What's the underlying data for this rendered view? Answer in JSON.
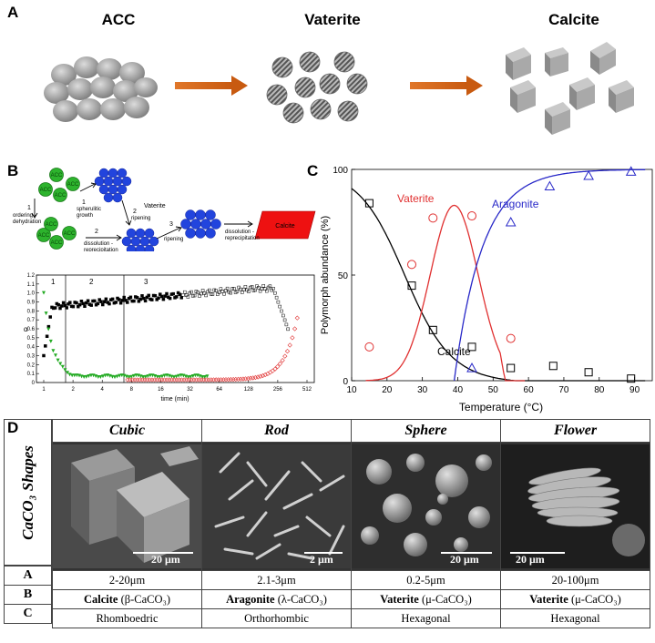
{
  "panel_a": {
    "label": "A",
    "stages": [
      "ACC",
      "Vaterite",
      "Calcite"
    ]
  },
  "panel_b": {
    "label": "B",
    "schematic": {
      "acc": "ACC",
      "vaterite": "Vaterite",
      "calcite": "Calcite",
      "step1a_num": "1",
      "step1a_text": [
        "ordering -",
        "dehydration"
      ],
      "step1b_num": "1",
      "step1b_text": [
        "spherulitic",
        "growth"
      ],
      "step2a_num": "2",
      "step2a_text": [
        "ripening"
      ],
      "step2b_num": "2",
      "step2b_text": [
        "dissolution -",
        "reprecipitation"
      ],
      "step3_num": "3",
      "step3a_text": [
        "ripening"
      ],
      "step3b_text": [
        "dissolution -",
        "reprecipitation"
      ]
    },
    "plot": {
      "ylabel": "α",
      "xlabel": "time (min)",
      "xticks": [
        "1",
        "2",
        "4",
        "8",
        "16",
        "32",
        "64",
        "128",
        "256",
        "512"
      ],
      "yticks": [
        "0",
        "0.1",
        "0.2",
        "0.3",
        "0.4",
        "0.5",
        "0.6",
        "0.7",
        "0.8",
        "0.9",
        "1.0",
        "1.1",
        "1.2"
      ],
      "stage_labels": [
        "1",
        "2",
        "3"
      ]
    }
  },
  "chart_data": {
    "type": "scatter",
    "title": "",
    "xlabel": "Temperature (°C)",
    "ylabel": "Polymorph abundance (%)",
    "xlim": [
      10,
      95
    ],
    "ylim": [
      0,
      100
    ],
    "xticks": [
      10,
      20,
      30,
      40,
      50,
      60,
      70,
      80,
      90
    ],
    "yticks": [
      0,
      50,
      100
    ],
    "series": [
      {
        "name": "Calcite",
        "color": "#000000",
        "marker": "square",
        "x": [
          15,
          27,
          33,
          44,
          55,
          67,
          77,
          89
        ],
        "y": [
          84,
          45,
          24,
          16,
          6,
          7,
          4,
          1
        ]
      },
      {
        "name": "Vaterite",
        "color": "#e03030",
        "marker": "circle",
        "x": [
          15,
          27,
          33,
          44,
          55
        ],
        "y": [
          16,
          55,
          77,
          78,
          20
        ]
      },
      {
        "name": "Aragonite",
        "color": "#2828c8",
        "marker": "triangle",
        "x": [
          44,
          55,
          66,
          77,
          89
        ],
        "y": [
          6,
          75,
          92,
          97,
          99
        ]
      }
    ]
  },
  "panel_c": {
    "label": "C"
  },
  "panel_d": {
    "label": "D",
    "side_label": "CaCO₃ Shapes",
    "columns": [
      {
        "name": "Cubic",
        "scale": "20 μm",
        "A": "2-20μm",
        "B_bold": "Calcite",
        "B_rest": " (β-CaCO₃)",
        "C": "Rhomboedric"
      },
      {
        "name": "Rod",
        "scale": "2 μm",
        "A": "2.1-3μm",
        "B_bold": "Aragonite",
        "B_rest": " (λ-CaCO₃)",
        "C": "Orthorhombic"
      },
      {
        "name": "Sphere",
        "scale": "20 μm",
        "A": "0.2-5μm",
        "B_bold": "Vaterite",
        "B_rest": " (μ-CaCO₃)",
        "C": "Hexagonal"
      },
      {
        "name": "Flower",
        "scale": "20 μm",
        "A": "20-100μm",
        "B_bold": "Vaterite",
        "B_rest": " (μ-CaCO₃)",
        "C": "Hexagonal"
      }
    ],
    "row_labels": [
      "A",
      "B",
      "C"
    ]
  }
}
